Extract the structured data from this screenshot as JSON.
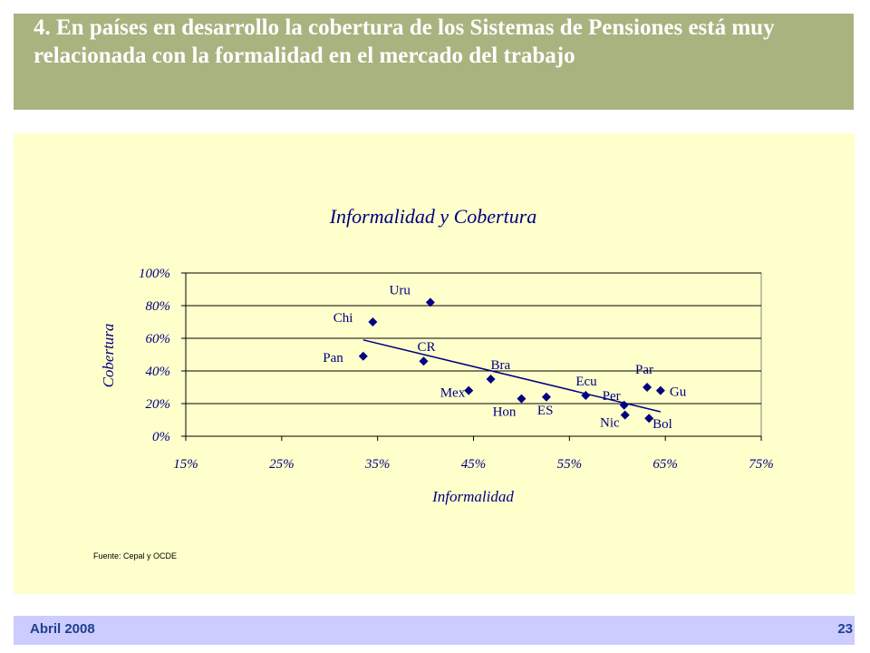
{
  "header": {
    "title": "4. En países en desarrollo la cobertura de los Sistemas de Pensiones está muy relacionada con la formalidad en el mercado del trabajo"
  },
  "footer": {
    "date": "Abril 2008",
    "page": "23"
  },
  "source": "Fuente: Cepal y OCDE",
  "colors": {
    "title_bar": "#a9b37f",
    "panel": "#ffffcc",
    "footer_bar": "#ccccff",
    "text_navy": "#000080",
    "marker": "#000080"
  },
  "chart_data": {
    "type": "scatter",
    "title": "Informalidad y Cobertura",
    "xlabel": "Informalidad",
    "ylabel": "Cobertura",
    "xlim": [
      0.15,
      0.75
    ],
    "ylim": [
      0,
      1.0
    ],
    "xticks": [
      "15%",
      "25%",
      "35%",
      "45%",
      "55%",
      "65%",
      "75%"
    ],
    "yticks": [
      "0%",
      "20%",
      "40%",
      "60%",
      "80%",
      "100%"
    ],
    "grid": "horizontal",
    "points": [
      {
        "label": "Uru",
        "x": 0.405,
        "y": 0.82
      },
      {
        "label": "Chi",
        "x": 0.345,
        "y": 0.7
      },
      {
        "label": "Pan",
        "x": 0.335,
        "y": 0.49
      },
      {
        "label": "CR",
        "x": 0.398,
        "y": 0.46
      },
      {
        "label": "Bra",
        "x": 0.468,
        "y": 0.35
      },
      {
        "label": "Mex",
        "x": 0.445,
        "y": 0.28
      },
      {
        "label": "Hon",
        "x": 0.5,
        "y": 0.23
      },
      {
        "label": "ES",
        "x": 0.526,
        "y": 0.24
      },
      {
        "label": "Ecu",
        "x": 0.567,
        "y": 0.25
      },
      {
        "label": "Per",
        "x": 0.607,
        "y": 0.19
      },
      {
        "label": "Par",
        "x": 0.631,
        "y": 0.3
      },
      {
        "label": "Gu",
        "x": 0.645,
        "y": 0.28
      },
      {
        "label": "Nic",
        "x": 0.608,
        "y": 0.13
      },
      {
        "label": "Bol",
        "x": 0.633,
        "y": 0.11
      }
    ],
    "trendline": {
      "x": [
        0.335,
        0.645
      ],
      "y": [
        0.59,
        0.15
      ]
    }
  }
}
